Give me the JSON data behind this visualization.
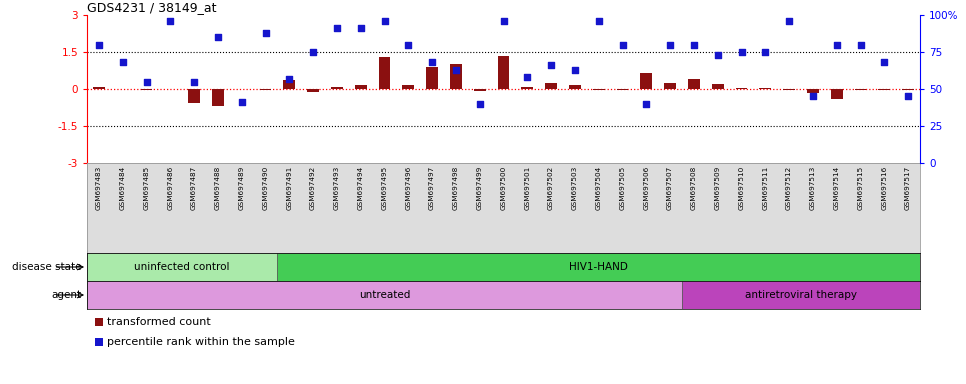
{
  "title": "GDS4231 / 38149_at",
  "samples": [
    "GSM697483",
    "GSM697484",
    "GSM697485",
    "GSM697486",
    "GSM697487",
    "GSM697488",
    "GSM697489",
    "GSM697490",
    "GSM697491",
    "GSM697492",
    "GSM697493",
    "GSM697494",
    "GSM697495",
    "GSM697496",
    "GSM697497",
    "GSM697498",
    "GSM697499",
    "GSM697500",
    "GSM697501",
    "GSM697502",
    "GSM697503",
    "GSM697504",
    "GSM697505",
    "GSM697506",
    "GSM697507",
    "GSM697508",
    "GSM697509",
    "GSM697510",
    "GSM697511",
    "GSM697512",
    "GSM697513",
    "GSM697514",
    "GSM697515",
    "GSM697516",
    "GSM697517"
  ],
  "transformed_count": [
    0.08,
    0.0,
    -0.05,
    0.0,
    -0.55,
    -0.7,
    0.0,
    -0.05,
    0.38,
    -0.12,
    0.08,
    0.15,
    1.3,
    0.18,
    0.9,
    1.0,
    -0.08,
    1.35,
    0.1,
    0.25,
    0.15,
    -0.05,
    -0.05,
    0.65,
    0.25,
    0.4,
    0.22,
    0.05,
    0.05,
    -0.05,
    -0.15,
    -0.4,
    -0.05,
    -0.05,
    -0.05
  ],
  "percentile_rank": [
    80,
    68,
    55,
    96,
    55,
    85,
    41,
    88,
    57,
    75,
    91,
    91,
    96,
    80,
    68,
    63,
    40,
    96,
    58,
    66,
    63,
    96,
    80,
    40,
    80,
    80,
    73,
    75,
    75,
    96,
    45,
    80,
    80,
    68,
    45
  ],
  "bar_color": "#8B1010",
  "scatter_color": "#1515CC",
  "ylim_left": [
    -3,
    3
  ],
  "ylim_right": [
    0,
    100
  ],
  "disease_state_groups": [
    {
      "label": "uninfected control",
      "start": 0,
      "end": 8,
      "color": "#AAEAAA"
    },
    {
      "label": "HIV1-HAND",
      "start": 8,
      "end": 35,
      "color": "#44CC55"
    }
  ],
  "agent_groups": [
    {
      "label": "untreated",
      "start": 0,
      "end": 25,
      "color": "#DD99DD"
    },
    {
      "label": "antiretroviral therapy",
      "start": 25,
      "end": 35,
      "color": "#BB44BB"
    }
  ],
  "legend_bar_label": "transformed count",
  "legend_scatter_label": "percentile rank within the sample",
  "label_row_bg": "#DDDDDD",
  "label_row_border": "#888888"
}
